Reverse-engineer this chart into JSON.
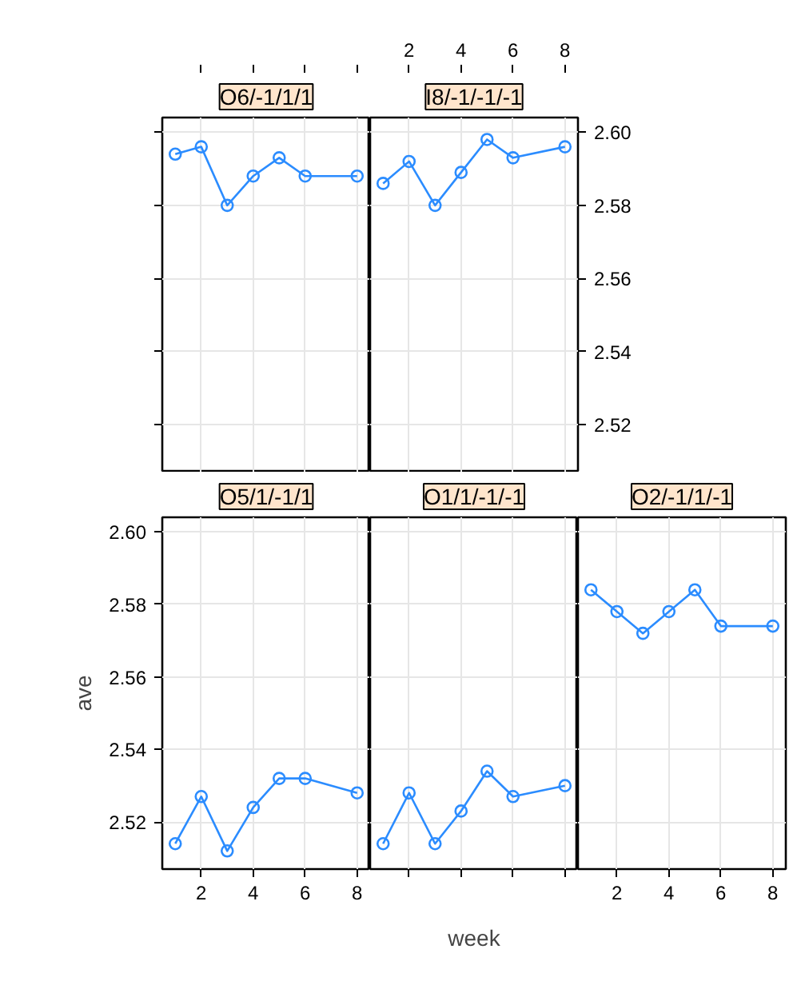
{
  "chart_data": [
    {
      "type": "line",
      "title": "O6/-1/1/1",
      "x": [
        1,
        2,
        3,
        4,
        5,
        6,
        8
      ],
      "series": [
        {
          "color": "#2b8cff",
          "values": [
            2.594,
            2.596,
            2.58,
            2.588,
            2.593,
            2.588,
            2.588
          ]
        }
      ],
      "marker": "circle",
      "line_style": "solid",
      "xlim": [
        0.5,
        8.5
      ],
      "ylim": [
        2.507,
        2.604
      ],
      "xticks": [
        2,
        4,
        6,
        8
      ],
      "yticks": [
        2.52,
        2.54,
        2.56,
        2.58,
        2.6
      ],
      "grid": true,
      "tick_labels": false
    },
    {
      "type": "line",
      "title": "I8/-1/-1/-1",
      "x": [
        1,
        2,
        3,
        4,
        5,
        6,
        8
      ],
      "series": [
        {
          "color": "#2b8cff",
          "values": [
            2.586,
            2.592,
            2.58,
            2.589,
            2.598,
            2.593,
            2.596
          ]
        }
      ],
      "marker": "circle",
      "line_style": "solid",
      "xlim": [
        0.5,
        8.5
      ],
      "ylim": [
        2.507,
        2.604
      ],
      "xticks": [
        2,
        4,
        6,
        8
      ],
      "yticks": [
        2.52,
        2.54,
        2.56,
        2.58,
        {
          "value": 2.6,
          "label": "2.60"
        }
      ],
      "grid": true
    },
    {
      "type": "line",
      "title": "O5/1/-1/1",
      "ylabel": "ave",
      "x": [
        1,
        2,
        3,
        4,
        5,
        6,
        8
      ],
      "series": [
        {
          "color": "#2b8cff",
          "values": [
            2.514,
            2.527,
            2.512,
            2.524,
            2.532,
            2.532,
            2.528
          ]
        }
      ],
      "marker": "circle",
      "line_style": "solid",
      "xlim": [
        0.5,
        8.5
      ],
      "ylim": [
        2.507,
        2.604
      ],
      "xticks": [
        2,
        4,
        6,
        8
      ],
      "yticks": [
        2.52,
        2.54,
        2.56,
        2.58,
        {
          "value": 2.6,
          "label": "2.60"
        }
      ],
      "grid": true
    },
    {
      "type": "line",
      "title": "O1/1/-1/-1",
      "xlabel": "week",
      "x": [
        1,
        2,
        3,
        4,
        5,
        6,
        8
      ],
      "series": [
        {
          "color": "#2b8cff",
          "values": [
            2.514,
            2.528,
            2.514,
            2.523,
            2.534,
            2.527,
            2.53
          ]
        }
      ],
      "marker": "circle",
      "line_style": "solid",
      "xlim": [
        0.5,
        8.5
      ],
      "ylim": [
        2.507,
        2.604
      ],
      "xticks": [
        2,
        4,
        6,
        8
      ],
      "yticks": [
        2.52,
        2.54,
        2.56,
        2.58,
        2.6
      ],
      "grid": true,
      "tick_labels": false
    },
    {
      "type": "line",
      "title": "O2/-1/1/-1",
      "x": [
        1,
        2,
        3,
        4,
        5,
        6,
        8
      ],
      "series": [
        {
          "color": "#2b8cff",
          "values": [
            2.584,
            2.578,
            2.572,
            2.578,
            2.584,
            2.574,
            2.574
          ]
        }
      ],
      "marker": "circle",
      "line_style": "solid",
      "xlim": [
        0.5,
        8.5
      ],
      "ylim": [
        2.507,
        2.604
      ],
      "xticks": [
        2,
        4,
        6,
        8
      ],
      "yticks": [
        2.52,
        2.54,
        2.56,
        2.58,
        2.6
      ],
      "grid": true,
      "tick_labels": "x"
    }
  ]
}
